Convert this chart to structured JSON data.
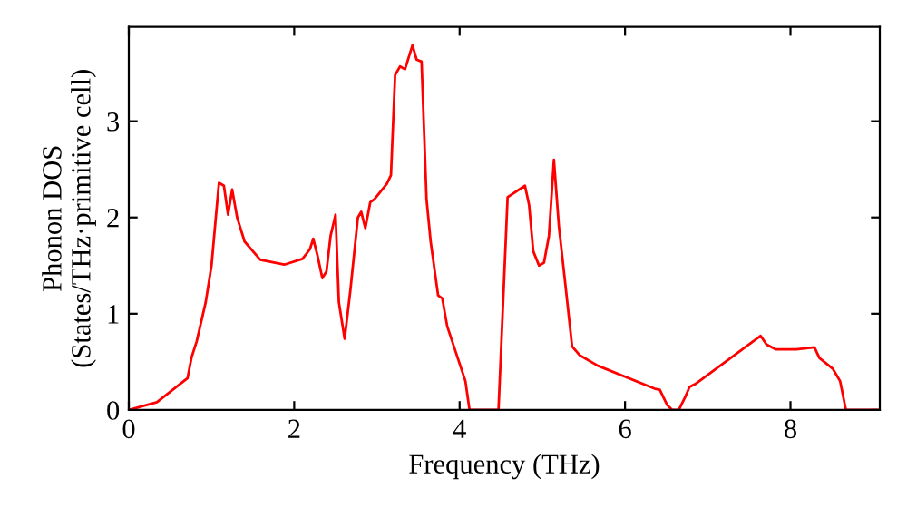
{
  "chart_data": {
    "type": "line",
    "xlabel": "Frequency (THz)",
    "ylabel": "Phonon DOS\n(States/THz·primitive cell)",
    "xlim": [
      0,
      9.08
    ],
    "ylim": [
      0,
      3.98
    ],
    "xticks": [
      0,
      2,
      4,
      6,
      8
    ],
    "yticks": [
      0,
      1,
      2,
      3
    ],
    "grid": false,
    "marker": "none",
    "line_style": "solid",
    "series": [
      {
        "color": "#ff0000",
        "x": [
          0,
          0.34,
          0.71,
          0.76,
          0.82,
          0.93,
          1.0,
          1.09,
          1.15,
          1.2,
          1.25,
          1.31,
          1.4,
          1.59,
          1.88,
          2.1,
          2.19,
          2.23,
          2.28,
          2.34,
          2.39,
          2.44,
          2.5,
          2.54,
          2.61,
          2.68,
          2.77,
          2.81,
          2.86,
          2.92,
          2.97,
          3.12,
          3.17,
          3.22,
          3.28,
          3.34,
          3.43,
          3.48,
          3.54,
          3.6,
          3.65,
          3.74,
          3.79,
          3.85,
          4.07,
          4.12,
          4.47,
          4.58,
          4.79,
          4.84,
          4.89,
          4.96,
          5.02,
          5.08,
          5.14,
          5.2,
          5.27,
          5.36,
          5.45,
          5.67,
          6.36,
          6.42,
          6.51,
          6.57,
          6.65,
          6.73,
          6.78,
          6.85,
          7.64,
          7.71,
          7.82,
          8.07,
          8.29,
          8.35,
          8.51,
          8.6,
          8.67,
          9.05
        ],
        "values": [
          0,
          0.08,
          0.33,
          0.55,
          0.71,
          1.12,
          1.5,
          2.36,
          2.33,
          2.03,
          2.29,
          2.0,
          1.75,
          1.56,
          1.51,
          1.57,
          1.67,
          1.78,
          1.61,
          1.37,
          1.44,
          1.81,
          2.03,
          1.12,
          0.74,
          1.25,
          2.0,
          2.06,
          1.89,
          2.16,
          2.19,
          2.35,
          2.44,
          3.48,
          3.57,
          3.54,
          3.79,
          3.64,
          3.62,
          2.19,
          1.75,
          1.19,
          1.16,
          0.87,
          0.3,
          0,
          0,
          2.21,
          2.33,
          2.13,
          1.65,
          1.5,
          1.53,
          1.81,
          2.6,
          1.91,
          1.37,
          0.66,
          0.57,
          0.46,
          0.22,
          0.21,
          0.05,
          0,
          0,
          0.14,
          0.24,
          0.27,
          0.77,
          0.68,
          0.63,
          0.63,
          0.65,
          0.54,
          0.43,
          0.3,
          0,
          0
        ]
      }
    ]
  }
}
